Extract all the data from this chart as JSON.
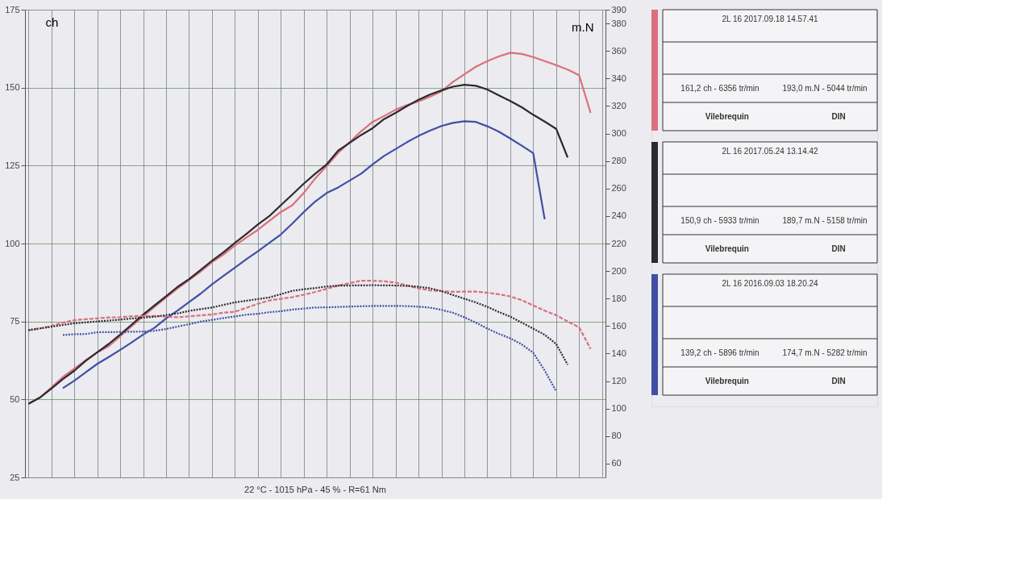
{
  "chart_data": {
    "type": "line",
    "categories": [
      null,
      null,
      null,
      null,
      null,
      null,
      null,
      null,
      null,
      null,
      null,
      null,
      null,
      null,
      null,
      null,
      null,
      null,
      null,
      null,
      null,
      null,
      null,
      null,
      null,
      null,
      null,
      null,
      null,
      null,
      null,
      null,
      null,
      null,
      null,
      null,
      null,
      null,
      null,
      null,
      null,
      null,
      null,
      null,
      null,
      null,
      null,
      null,
      null,
      null,
      null
    ],
    "ylabel": "ch",
    "y2label": "m.N",
    "ylim": [
      25,
      175
    ],
    "yticks": [
      25,
      50,
      75,
      100,
      125,
      150,
      175
    ],
    "y2lim": [
      50,
      390
    ],
    "y2ticks": [
      60,
      80,
      100,
      120,
      140,
      160,
      180,
      200,
      220,
      240,
      260,
      280,
      300,
      320,
      340,
      360,
      380,
      390
    ],
    "grid": true,
    "legend": "right",
    "series": [
      {
        "name": "2L 16  2017.09.18 14.57.41",
        "color": "#d9707c",
        "line_style": "solid",
        "values": [
          48.6,
          50.6,
          53.8,
          57.2,
          59.9,
          62.6,
          65.1,
          67.1,
          70.3,
          73.5,
          76.7,
          79.7,
          82.7,
          85.6,
          88.3,
          91.0,
          94.0,
          96.5,
          99.4,
          101.9,
          104.4,
          107.3,
          110.1,
          112.3,
          116.2,
          120.9,
          124.9,
          129.1,
          132.5,
          136.0,
          139.0,
          140.9,
          142.9,
          144.4,
          145.6,
          147.1,
          148.8,
          151.8,
          154.3,
          156.7,
          158.5,
          160.0,
          161.2,
          160.8,
          159.8,
          158.5,
          157.2,
          155.8,
          154.0,
          141.9,
          null
        ]
      },
      {
        "name": "2L 16  2017.05.24 13.14.42",
        "color": "#2b2b2f",
        "line_style": "solid",
        "values": [
          48.6,
          50.6,
          53.5,
          56.5,
          59.2,
          62.4,
          65.1,
          67.8,
          70.8,
          74.0,
          77.2,
          80.2,
          83.1,
          86.1,
          88.6,
          91.5,
          94.5,
          97.2,
          100.2,
          103.1,
          106.1,
          108.8,
          112.3,
          115.7,
          119.2,
          122.4,
          125.4,
          129.8,
          132.3,
          134.8,
          137.0,
          139.9,
          141.9,
          144.1,
          146.1,
          147.8,
          149.1,
          150.3,
          150.9,
          150.6,
          149.4,
          147.5,
          145.7,
          143.7,
          141.3,
          139.1,
          136.8,
          127.6,
          null,
          null,
          null
        ]
      },
      {
        "name": "2L 16  2016.09.03 18.20.24",
        "color": "#3f4fa6",
        "line_style": "solid",
        "values": [
          null,
          null,
          null,
          53.6,
          56.0,
          58.7,
          61.4,
          63.6,
          65.9,
          68.3,
          70.8,
          73.0,
          76.0,
          78.5,
          81.2,
          83.9,
          86.9,
          89.6,
          92.3,
          95.0,
          97.5,
          100.2,
          102.9,
          106.4,
          110.1,
          113.5,
          116.2,
          118.0,
          120.2,
          122.4,
          125.4,
          128.1,
          130.3,
          132.5,
          134.5,
          136.2,
          137.7,
          138.7,
          139.2,
          139.0,
          137.6,
          135.9,
          133.7,
          131.4,
          129.0,
          107.8,
          null,
          null,
          null,
          null,
          null
        ]
      },
      {
        "color": "#d9707c",
        "axis": "y2",
        "line_style": "dashed",
        "values": [
          157.0,
          158.3,
          160.1,
          162.5,
          164.3,
          165.0,
          165.6,
          166.3,
          166.4,
          167.2,
          167.3,
          167.4,
          166.9,
          166.4,
          167.1,
          167.8,
          168.4,
          169.7,
          170.4,
          173.3,
          176.2,
          178.6,
          179.8,
          181.0,
          182.8,
          184.8,
          187.1,
          189.4,
          191.2,
          193.0,
          192.9,
          192.6,
          191.6,
          189.6,
          187.4,
          185.9,
          185.4,
          184.9,
          185.0,
          185.1,
          184.2,
          183.1,
          181.6,
          178.8,
          175.0,
          171.2,
          167.9,
          163.4,
          159.1,
          143.4,
          null
        ]
      },
      {
        "color": "#2b2b2f",
        "axis": "y2",
        "line_style": "dotted",
        "values": [
          157.0,
          158.3,
          159.5,
          160.8,
          162.0,
          162.7,
          163.4,
          164.0,
          164.7,
          165.5,
          166.1,
          166.8,
          168.0,
          169.2,
          171.0,
          172.3,
          173.5,
          175.4,
          177.2,
          178.4,
          179.6,
          180.8,
          183.2,
          185.6,
          186.8,
          187.6,
          188.8,
          189.4,
          189.5,
          189.6,
          189.7,
          189.6,
          189.5,
          189.2,
          188.6,
          187.5,
          185.4,
          182.6,
          179.9,
          177.2,
          174.0,
          170.2,
          166.9,
          162.5,
          158.1,
          153.7,
          147.0,
          131.9,
          null,
          null,
          null
        ]
      },
      {
        "color": "#3f4fa6",
        "axis": "y2",
        "line_style": "dotted",
        "values": [
          null,
          null,
          null,
          153.5,
          154.1,
          154.2,
          155.5,
          155.6,
          155.7,
          155.9,
          156.0,
          156.6,
          157.9,
          159.6,
          161.4,
          163.2,
          164.5,
          165.8,
          167.0,
          168.3,
          168.9,
          170.1,
          170.8,
          172.0,
          172.7,
          173.5,
          173.6,
          173.9,
          174.2,
          174.4,
          174.6,
          174.7,
          174.7,
          174.5,
          174.1,
          173.4,
          171.8,
          169.7,
          166.4,
          162.5,
          158.2,
          154.4,
          151.1,
          146.7,
          140.6,
          127.7,
          112.6,
          null,
          null,
          null,
          null
        ]
      }
    ],
    "annotations": [
      "161,2 ch - 6356 tr/min",
      "193,0 m.N - 5044 tr/min",
      "Vilebrequin",
      "DIN",
      "150,9 ch - 5933 tr/min",
      "189,7 m.N - 5158 tr/min",
      "Vilebrequin",
      "DIN",
      "139,2 ch - 5896 tr/min",
      "174,7 m.N - 5282 tr/min",
      "Vilebrequin",
      "DIN",
      "22 °C - 1015 hPa - 45 % - R=61 Nm"
    ]
  }
}
